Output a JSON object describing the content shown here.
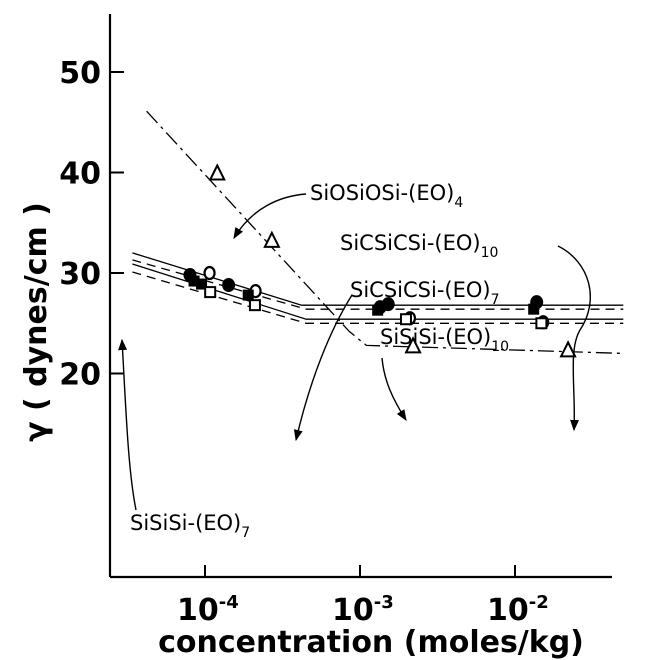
{
  "chart_data": {
    "type": "scatter",
    "xscale": "log",
    "xlabel": "concentration (moles/kg)",
    "ylabel": "γ ( dynes/cm )",
    "xlim": [
      2.5e-05,
      0.07
    ],
    "ylim": [
      16,
      55
    ],
    "x_ticks": [
      {
        "value": 0.0001,
        "base": "10",
        "exp": "-4"
      },
      {
        "value": 0.001,
        "base": "10",
        "exp": "-3"
      },
      {
        "value": 0.01,
        "base": "10",
        "exp": "-2"
      }
    ],
    "y_ticks": [
      {
        "value": 20,
        "label": "20"
      },
      {
        "value": 30,
        "label": "30"
      },
      {
        "value": 40,
        "label": "40"
      },
      {
        "value": 50,
        "label": "50"
      }
    ],
    "grid": false,
    "series": [
      {
        "marker": "triangle-open",
        "line": "dash-dot",
        "points": [
          [
            0.00012,
            39.9
          ],
          [
            0.00027,
            33.2
          ],
          [
            0.0022,
            22.7
          ],
          [
            0.022,
            22.3
          ]
        ],
        "fit": [
          [
            4.2e-05,
            46.1
          ],
          [
            0.00085,
            24.2
          ],
          [
            0.0011,
            22.8
          ],
          [
            0.05,
            22.0
          ]
        ]
      },
      {
        "marker": "circle-filled",
        "line": "solid",
        "points": [
          [
            8e-05,
            29.8
          ],
          [
            0.000142,
            28.8
          ],
          [
            0.00135,
            26.6
          ],
          [
            0.00152,
            26.9
          ],
          [
            0.0138,
            27.1
          ]
        ],
        "fit": [
          [
            3.4e-05,
            32.0
          ],
          [
            0.00042,
            26.8
          ],
          [
            0.05,
            26.8
          ]
        ]
      },
      {
        "marker": "circle-open",
        "line": "dashed",
        "points": [
          [
            0.000107,
            30.0
          ],
          [
            0.000212,
            28.2
          ],
          [
            0.0021,
            25.5
          ],
          [
            0.0152,
            25.1
          ]
        ],
        "fit": [
          [
            3.4e-05,
            31.3
          ],
          [
            0.00045,
            26.4
          ],
          [
            0.05,
            26.4
          ]
        ]
      },
      {
        "marker": "square-filled",
        "line": "solid",
        "points": [
          [
            8.5e-05,
            29.2
          ],
          [
            9.5e-05,
            28.9
          ],
          [
            0.00019,
            27.8
          ],
          [
            0.0013,
            26.3
          ],
          [
            0.0132,
            26.4
          ]
        ],
        "fit": [
          [
            3.4e-05,
            30.9
          ],
          [
            0.00045,
            25.4
          ],
          [
            0.05,
            25.4
          ]
        ]
      },
      {
        "marker": "square-open",
        "line": "dashed",
        "points": [
          [
            0.000108,
            28.1
          ],
          [
            0.00021,
            26.8
          ],
          [
            0.00198,
            25.4
          ],
          [
            0.0148,
            25.0
          ]
        ],
        "fit": [
          [
            3.4e-05,
            30.1
          ],
          [
            0.00045,
            25.0
          ],
          [
            0.05,
            25.0
          ]
        ]
      }
    ],
    "annotations": [
      {
        "text": "SiOSiOSi-(EO)",
        "sub": "4"
      },
      {
        "text": "SiCSiCSi-(EO)",
        "sub": "10"
      },
      {
        "text": "SiCSiCSi-(EO)",
        "sub": "7"
      },
      {
        "text": "SiSiSi-(EO)",
        "sub": "10"
      },
      {
        "text": "SiSiSi-(EO)",
        "sub": "7"
      }
    ]
  }
}
